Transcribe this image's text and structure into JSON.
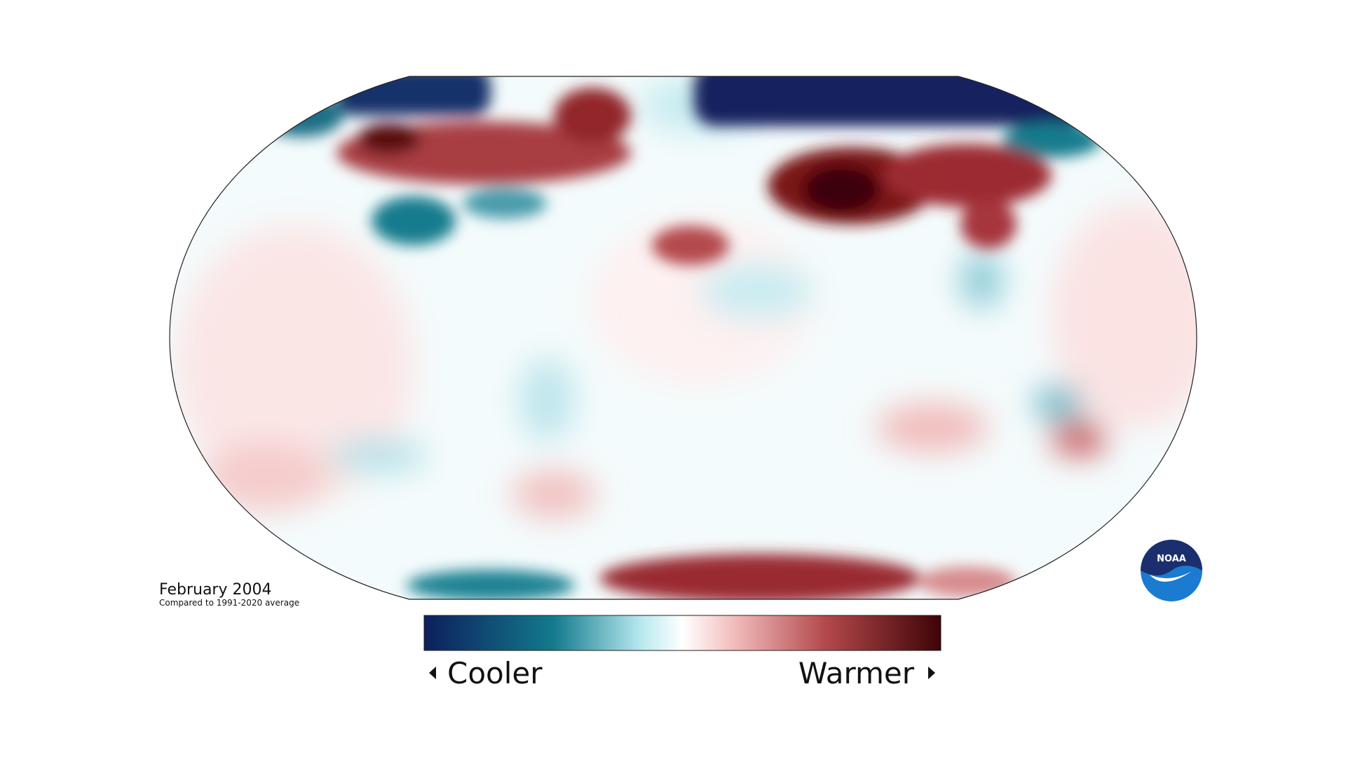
{
  "map": {
    "title": "February 2004",
    "subtitle": "Compared to 1991-2020 average",
    "legend": {
      "low_label": "Cooler",
      "high_label": "Warmer"
    },
    "logo": "NOAA"
  }
}
